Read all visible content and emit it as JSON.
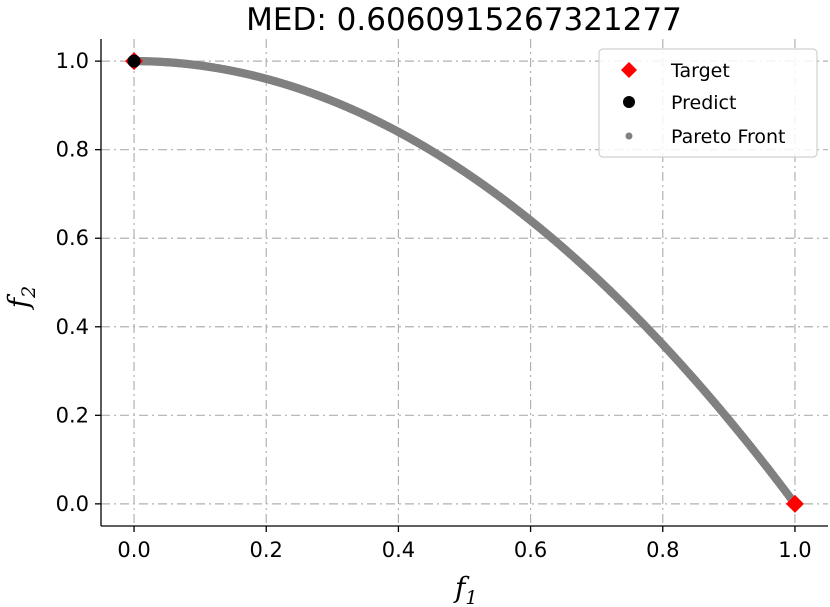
{
  "chart_data": {
    "type": "scatter",
    "title": "MED: 0.6060915267321277",
    "xlabel": "f",
    "xlabel_sub": "1",
    "ylabel": "f",
    "ylabel_sub": "2",
    "xlim": [
      -0.05,
      1.05
    ],
    "ylim": [
      -0.05,
      1.05
    ],
    "xticks": [
      0.0,
      0.2,
      0.4,
      0.6,
      0.8,
      1.0
    ],
    "xtick_labels": [
      "0.0",
      "0.2",
      "0.4",
      "0.6",
      "0.8",
      "1.0"
    ],
    "yticks": [
      0.0,
      0.2,
      0.4,
      0.6,
      0.8,
      1.0
    ],
    "ytick_labels": [
      "0.0",
      "0.2",
      "0.4",
      "0.6",
      "0.8",
      "1.0"
    ],
    "grid": true,
    "legend_position": "top-right",
    "series": [
      {
        "name": "Target",
        "marker": "diamond",
        "color": "#ff0000",
        "points": [
          [
            0.0,
            1.0
          ],
          [
            1.0,
            0.0
          ]
        ]
      },
      {
        "name": "Predict",
        "marker": "circle",
        "color": "#000000",
        "points": [
          [
            0.0,
            1.0
          ]
        ]
      },
      {
        "name": "Pareto Front",
        "marker": "dot",
        "color": "#808080",
        "function": "f2 = 1 - f1^2",
        "f1_range": [
          0.0,
          1.0
        ]
      }
    ]
  }
}
